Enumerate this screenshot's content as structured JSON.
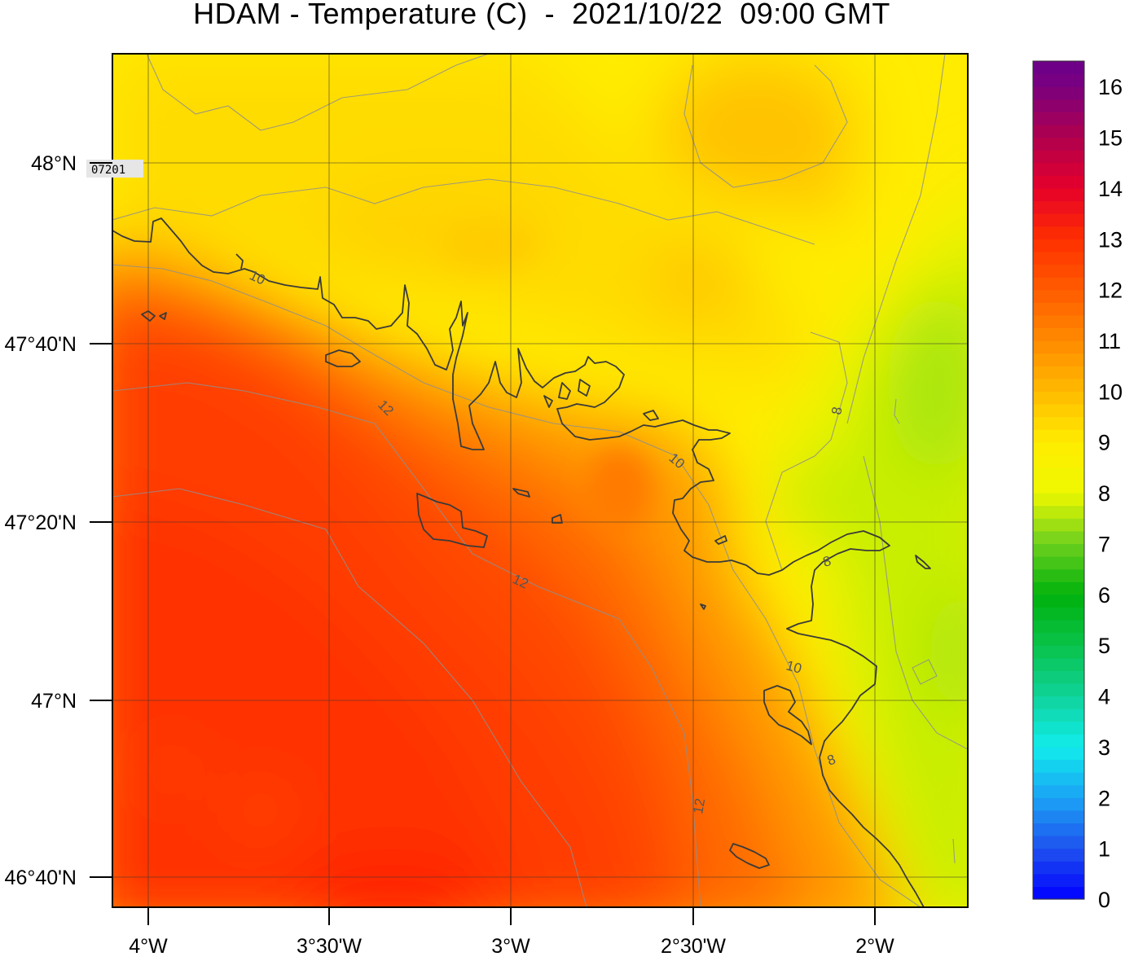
{
  "title": "HDAM - Temperature (C)  -  2021/10/22  09:00 GMT",
  "lon_ticks": [
    "4°W",
    "3°30'W",
    "3°W",
    "2°30'W",
    "2°W"
  ],
  "lat_ticks": [
    "48°N",
    "47°40'N",
    "47°20'N",
    "47°N",
    "46°40'N"
  ],
  "station": {
    "id": "07201"
  },
  "colorbar": {
    "min": 0,
    "max": 16.5,
    "labels": [
      "0",
      "1",
      "2",
      "3",
      "4",
      "5",
      "6",
      "7",
      "8",
      "9",
      "10",
      "11",
      "12",
      "13",
      "14",
      "15",
      "16"
    ],
    "stops": [
      {
        "v": 0,
        "c": "#0000ff"
      },
      {
        "v": 1,
        "c": "#1f52ee"
      },
      {
        "v": 2,
        "c": "#1aa3f5"
      },
      {
        "v": 3,
        "c": "#11ecec"
      },
      {
        "v": 4,
        "c": "#0fd39a"
      },
      {
        "v": 5,
        "c": "#09c24a"
      },
      {
        "v": 6,
        "c": "#00b20c"
      },
      {
        "v": 7,
        "c": "#6cd01e"
      },
      {
        "v": 8,
        "c": "#eef800"
      },
      {
        "v": 9,
        "c": "#ffec00"
      },
      {
        "v": 10,
        "c": "#ffba00"
      },
      {
        "v": 11,
        "c": "#ff8a00"
      },
      {
        "v": 12,
        "c": "#ff5b00"
      },
      {
        "v": 13,
        "c": "#ff2f00"
      },
      {
        "v": 14,
        "c": "#e6002a"
      },
      {
        "v": 15,
        "c": "#b0004e"
      },
      {
        "v": 16,
        "c": "#7a007e"
      },
      {
        "v": 16.5,
        "c": "#6a008a"
      }
    ]
  },
  "contour_labels": [
    "10",
    "12",
    "12",
    "10",
    "8",
    "8",
    "10",
    "8",
    "12"
  ]
}
